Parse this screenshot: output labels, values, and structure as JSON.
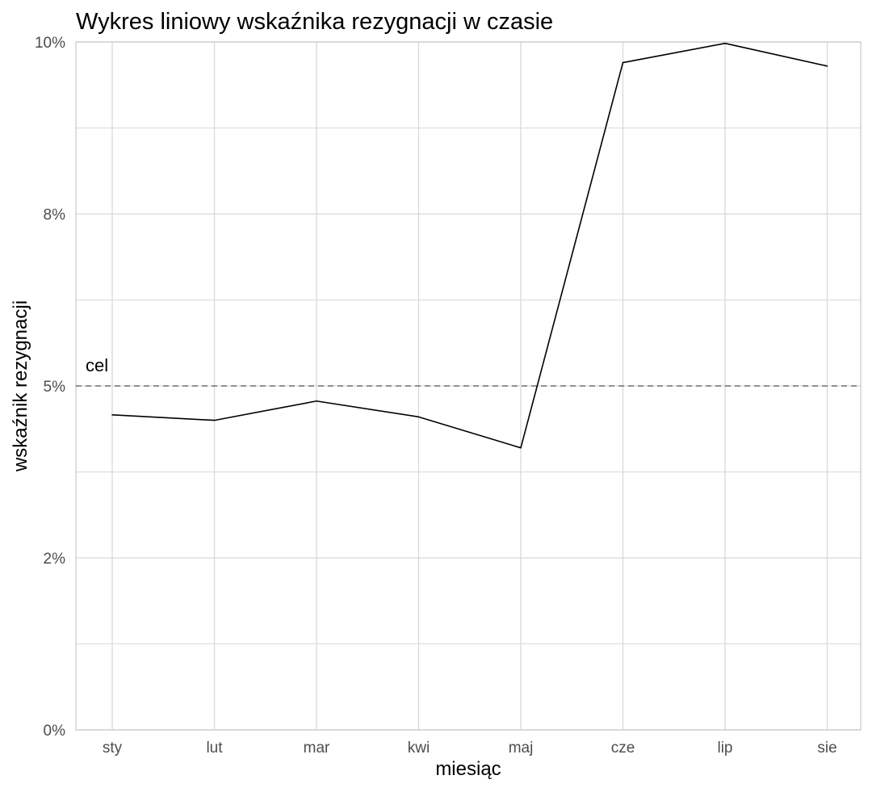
{
  "chart_data": {
    "type": "line",
    "title": "Wykres liniowy wskaźnika rezygnacji w czasie",
    "xlabel": "miesiąc",
    "ylabel": "wskaźnik rezygnacji",
    "categories": [
      "sty",
      "lut",
      "mar",
      "kwi",
      "maj",
      "cze",
      "lip",
      "sie"
    ],
    "series": [
      {
        "values": [
          0.0458,
          0.045,
          0.0478,
          0.0455,
          0.041,
          0.097,
          0.0998,
          0.0965
        ]
      }
    ],
    "ylim": [
      0,
      0.1
    ],
    "y_ticks": [
      {
        "value": 0,
        "label": "0%"
      },
      {
        "value": 0.025,
        "label": "2%"
      },
      {
        "value": 0.05,
        "label": "5%"
      },
      {
        "value": 0.075,
        "label": "8%"
      },
      {
        "value": 0.1,
        "label": "10%"
      }
    ],
    "y_minor_gridlines": [
      0.0125,
      0.0375,
      0.0625,
      0.0875
    ],
    "reference_line": {
      "value": 0.05,
      "label": "cel",
      "style": "dashed"
    },
    "grid": true,
    "colors": {
      "line": "#000000",
      "grid": "#d9d9d9",
      "panel_border": "#bdbdbd",
      "reference_line": "#555555",
      "tick_label": "#4d4d4d"
    }
  }
}
